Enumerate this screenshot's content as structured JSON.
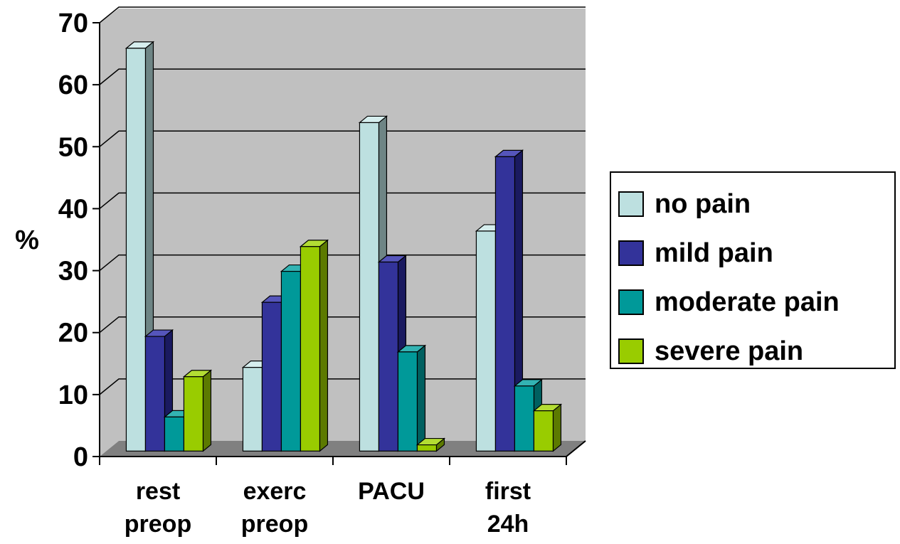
{
  "chart_data": {
    "type": "bar",
    "title": "",
    "xlabel": "",
    "ylabel": "%",
    "ylim": [
      0,
      70
    ],
    "yticks": [
      0,
      10,
      20,
      30,
      40,
      50,
      60,
      70
    ],
    "yticks_text": [
      "0",
      "10",
      "20",
      "30",
      "40",
      "50",
      "60",
      "70"
    ],
    "grid": true,
    "legend_position": "right",
    "categories": [
      [
        "rest",
        "preop"
      ],
      [
        "exerc",
        "preop"
      ],
      [
        "PACU"
      ],
      [
        "first",
        "24h"
      ]
    ],
    "series": [
      {
        "name": "no pain",
        "values": [
          65,
          13.5,
          53,
          35.5
        ]
      },
      {
        "name": "mild pain",
        "values": [
          18.5,
          24,
          30.5,
          47.5
        ]
      },
      {
        "name": "moderate pain",
        "values": [
          5.5,
          29,
          16,
          10.5
        ]
      },
      {
        "name": "severe pain",
        "values": [
          12,
          33,
          1,
          6.5
        ]
      }
    ],
    "colors": {
      "series_front": [
        "#bde0e0",
        "#33339a",
        "#009999",
        "#99cc00"
      ],
      "series_top": [
        "#d6eeee",
        "#5555bb",
        "#33b3b3",
        "#b3dd33"
      ],
      "series_side": [
        "#6e8585",
        "#1a1a60",
        "#006060",
        "#5c7a00"
      ],
      "wall": "#c0c0c0",
      "floor": "#808080",
      "grid": "#000000"
    }
  }
}
